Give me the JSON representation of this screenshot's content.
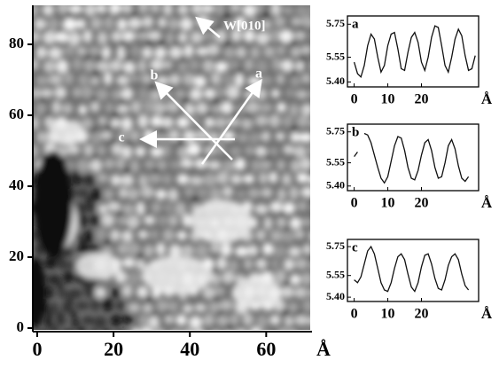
{
  "chart_data": [
    {
      "type": "image",
      "xlim": [
        0,
        72
      ],
      "ylim": [
        0,
        91
      ],
      "xticks": [
        0,
        20,
        40,
        60
      ],
      "yticks": [
        0,
        20,
        40,
        60,
        80
      ],
      "x_unit": "Å",
      "annotations": [
        "W[010]",
        "a",
        "b",
        "c"
      ]
    },
    {
      "type": "line",
      "label": "a",
      "x_unit": "Å",
      "xlim": [
        -2,
        37
      ],
      "ylim": [
        5.37,
        5.8
      ],
      "xticks": [
        0,
        10,
        20
      ],
      "yticks": [
        {
          "value": 5.4,
          "label": "5.40"
        },
        5.55,
        5.75
      ],
      "series": [
        {
          "color": "#111111",
          "x": [
            0,
            1,
            2,
            3,
            4,
            5,
            6,
            7,
            8,
            9,
            10,
            11,
            12,
            13,
            14,
            15,
            16,
            17,
            18,
            19,
            20,
            21,
            22,
            23,
            24,
            25,
            26,
            27,
            28,
            29,
            30,
            31,
            32,
            33,
            34,
            35,
            36
          ],
          "values": [
            5.52,
            5.45,
            5.43,
            5.5,
            5.62,
            5.69,
            5.66,
            5.55,
            5.46,
            5.5,
            5.62,
            5.69,
            5.7,
            5.6,
            5.48,
            5.47,
            5.58,
            5.67,
            5.7,
            5.64,
            5.52,
            5.47,
            5.55,
            5.67,
            5.74,
            5.73,
            5.62,
            5.5,
            5.46,
            5.55,
            5.66,
            5.72,
            5.68,
            5.56,
            5.47,
            5.48,
            5.56
          ]
        }
      ]
    },
    {
      "type": "line",
      "label": "b",
      "x_unit": "Å",
      "xlim": [
        -2,
        37
      ],
      "ylim": [
        5.37,
        5.8
      ],
      "xticks": [
        0,
        10,
        20
      ],
      "yticks": [
        {
          "value": 5.4,
          "label": "5.40"
        },
        5.55,
        5.75
      ],
      "series": [
        {
          "color": "#111111",
          "x": [
            0,
            1,
            2,
            3,
            4,
            5,
            6,
            7,
            8,
            9,
            10,
            11,
            12,
            13,
            14,
            15,
            16,
            17,
            18,
            19,
            20,
            21,
            22,
            23,
            24,
            25,
            26,
            27,
            28,
            29,
            30,
            31,
            32,
            33,
            34
          ],
          "values": [
            5.59,
            5.62,
            null,
            5.74,
            5.73,
            5.68,
            5.6,
            5.52,
            5.45,
            5.42,
            5.46,
            5.56,
            5.66,
            5.72,
            5.71,
            5.63,
            5.52,
            5.45,
            5.44,
            5.5,
            5.6,
            5.68,
            5.7,
            5.63,
            5.52,
            5.45,
            5.46,
            5.55,
            5.66,
            5.7,
            5.64,
            5.53,
            5.45,
            5.43,
            5.46
          ]
        }
      ]
    },
    {
      "type": "line",
      "label": "c",
      "x_unit": "Å",
      "xlim": [
        -2,
        37
      ],
      "ylim": [
        5.37,
        5.8
      ],
      "xticks": [
        0,
        10,
        20
      ],
      "yticks": [
        {
          "value": 5.4,
          "label": "5.40"
        },
        5.55,
        5.75
      ],
      "series": [
        {
          "color": "#111111",
          "x": [
            0,
            1,
            2,
            3,
            4,
            5,
            6,
            7,
            8,
            9,
            10,
            11,
            12,
            13,
            14,
            15,
            16,
            17,
            18,
            19,
            20,
            21,
            22,
            23,
            24,
            25,
            26,
            27,
            28,
            29,
            30,
            31,
            32,
            33,
            34
          ],
          "values": [
            5.52,
            5.5,
            5.54,
            5.63,
            5.72,
            5.75,
            5.7,
            5.6,
            5.5,
            5.45,
            5.44,
            5.5,
            5.6,
            5.68,
            5.7,
            5.66,
            5.56,
            5.47,
            5.44,
            5.5,
            5.61,
            5.69,
            5.7,
            5.63,
            5.53,
            5.46,
            5.45,
            5.52,
            5.62,
            5.68,
            5.7,
            5.66,
            5.56,
            5.48,
            5.45
          ]
        }
      ]
    }
  ]
}
